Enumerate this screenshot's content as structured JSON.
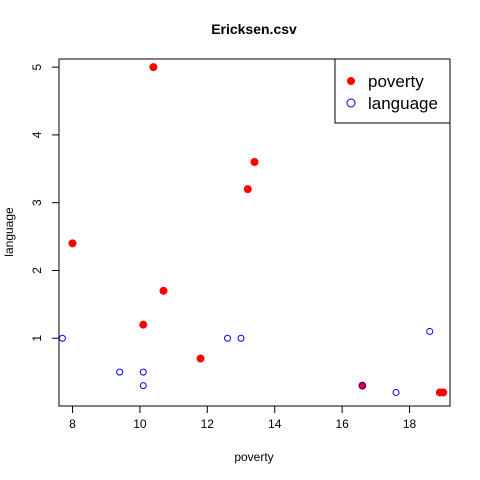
{
  "chart_data": {
    "type": "scatter",
    "title": "Ericksen.csv",
    "xlabel": "poverty",
    "ylabel": "language",
    "xlim": [
      7.6,
      19.2
    ],
    "ylim": [
      0.0,
      5.12
    ],
    "x_ticks": [
      8,
      10,
      12,
      14,
      16,
      18
    ],
    "y_ticks": [
      1,
      2,
      3,
      4,
      5
    ],
    "grid": false,
    "legend_position": "top-right",
    "series": [
      {
        "name": "poverty",
        "marker": "filled-circle",
        "color": "#ff0000",
        "points": [
          {
            "x": 8.0,
            "y": 2.4
          },
          {
            "x": 10.1,
            "y": 1.2
          },
          {
            "x": 10.4,
            "y": 5.0
          },
          {
            "x": 10.7,
            "y": 1.7
          },
          {
            "x": 11.8,
            "y": 0.7
          },
          {
            "x": 13.2,
            "y": 3.2
          },
          {
            "x": 13.4,
            "y": 3.6
          },
          {
            "x": 16.6,
            "y": 0.3
          },
          {
            "x": 18.9,
            "y": 0.2
          },
          {
            "x": 19.0,
            "y": 0.2
          }
        ]
      },
      {
        "name": "language",
        "marker": "open-circle",
        "color": "#0000ff",
        "points": [
          {
            "x": 7.7,
            "y": 1.0
          },
          {
            "x": 9.4,
            "y": 0.5
          },
          {
            "x": 10.1,
            "y": 0.5
          },
          {
            "x": 10.1,
            "y": 0.3
          },
          {
            "x": 12.6,
            "y": 1.0
          },
          {
            "x": 13.0,
            "y": 1.0
          },
          {
            "x": 16.6,
            "y": 0.3
          },
          {
            "x": 17.6,
            "y": 0.2
          },
          {
            "x": 18.6,
            "y": 1.1
          }
        ]
      }
    ]
  }
}
